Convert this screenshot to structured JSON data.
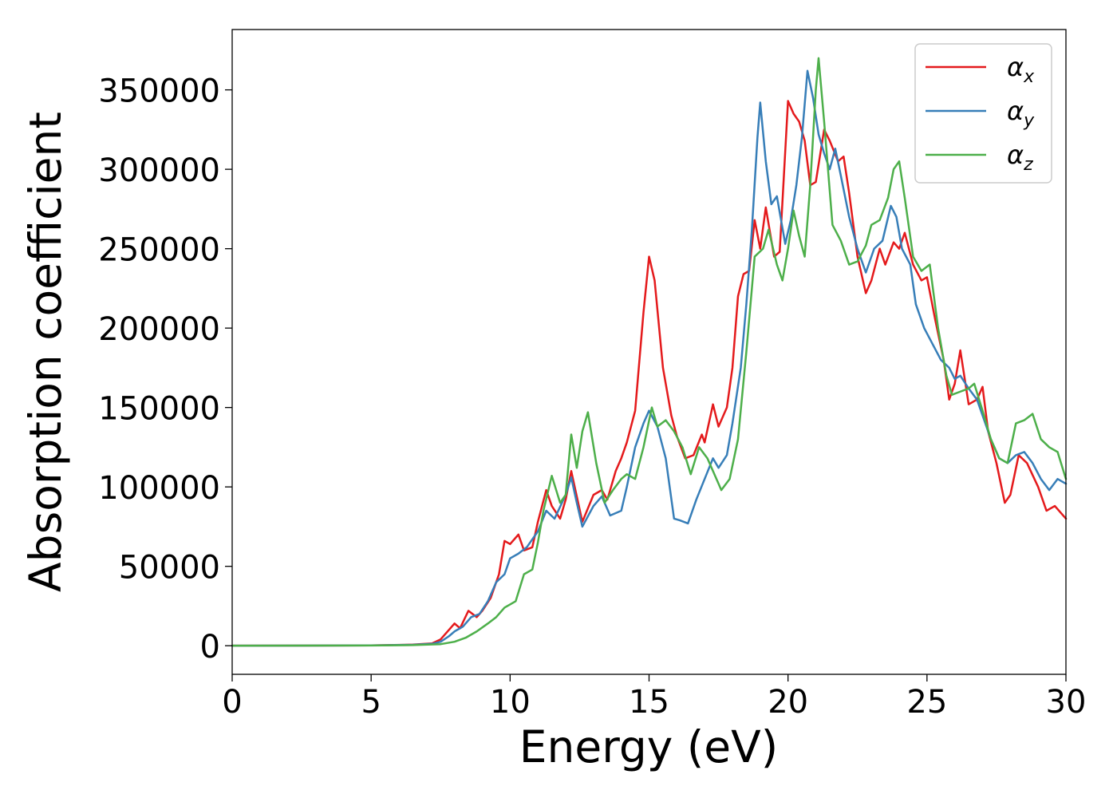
{
  "chart_data": {
    "type": "line",
    "title": "",
    "xlabel": "Energy (eV)",
    "ylabel": "Absorption coefficient",
    "xlim": [
      0,
      30
    ],
    "ylim": [
      -18000,
      388000
    ],
    "xticks": [
      0,
      5,
      10,
      15,
      20,
      25,
      30
    ],
    "yticks": [
      0,
      50000,
      100000,
      150000,
      200000,
      250000,
      300000,
      350000
    ],
    "grid": false,
    "legend_position": "top-right",
    "series": [
      {
        "name": "αx",
        "base": "α",
        "sub": "x",
        "color": "#e41a1c",
        "points": [
          [
            0,
            0
          ],
          [
            5,
            200
          ],
          [
            6.5,
            700
          ],
          [
            7.2,
            1500
          ],
          [
            7.5,
            4000
          ],
          [
            7.8,
            10000
          ],
          [
            8.0,
            14000
          ],
          [
            8.2,
            11000
          ],
          [
            8.5,
            22000
          ],
          [
            8.8,
            18000
          ],
          [
            9.0,
            22000
          ],
          [
            9.3,
            30000
          ],
          [
            9.6,
            45000
          ],
          [
            9.8,
            66000
          ],
          [
            10.0,
            64000
          ],
          [
            10.3,
            70000
          ],
          [
            10.5,
            60000
          ],
          [
            10.8,
            62000
          ],
          [
            11.0,
            78000
          ],
          [
            11.3,
            98000
          ],
          [
            11.5,
            88000
          ],
          [
            11.8,
            80000
          ],
          [
            12.0,
            92000
          ],
          [
            12.2,
            110000
          ],
          [
            12.6,
            78000
          ],
          [
            13.0,
            95000
          ],
          [
            13.3,
            98000
          ],
          [
            13.5,
            92000
          ],
          [
            13.8,
            110000
          ],
          [
            14.0,
            118000
          ],
          [
            14.2,
            128000
          ],
          [
            14.5,
            148000
          ],
          [
            14.8,
            210000
          ],
          [
            15.0,
            245000
          ],
          [
            15.2,
            230000
          ],
          [
            15.5,
            175000
          ],
          [
            15.8,
            145000
          ],
          [
            16.0,
            132000
          ],
          [
            16.3,
            118000
          ],
          [
            16.6,
            120000
          ],
          [
            16.9,
            133000
          ],
          [
            17.0,
            128000
          ],
          [
            17.3,
            152000
          ],
          [
            17.5,
            138000
          ],
          [
            17.8,
            150000
          ],
          [
            18.0,
            175000
          ],
          [
            18.2,
            220000
          ],
          [
            18.4,
            234000
          ],
          [
            18.6,
            236000
          ],
          [
            18.8,
            268000
          ],
          [
            19.0,
            250000
          ],
          [
            19.2,
            276000
          ],
          [
            19.5,
            245000
          ],
          [
            19.7,
            248000
          ],
          [
            20.0,
            343000
          ],
          [
            20.2,
            335000
          ],
          [
            20.4,
            330000
          ],
          [
            20.6,
            318000
          ],
          [
            20.8,
            290000
          ],
          [
            21.0,
            292000
          ],
          [
            21.3,
            325000
          ],
          [
            21.5,
            318000
          ],
          [
            21.8,
            305000
          ],
          [
            22.0,
            308000
          ],
          [
            22.2,
            285000
          ],
          [
            22.5,
            245000
          ],
          [
            22.8,
            222000
          ],
          [
            23.0,
            230000
          ],
          [
            23.3,
            250000
          ],
          [
            23.5,
            240000
          ],
          [
            23.8,
            254000
          ],
          [
            24.0,
            250000
          ],
          [
            24.2,
            260000
          ],
          [
            24.5,
            240000
          ],
          [
            24.8,
            230000
          ],
          [
            25.0,
            232000
          ],
          [
            25.3,
            205000
          ],
          [
            25.6,
            180000
          ],
          [
            25.8,
            155000
          ],
          [
            26.0,
            165000
          ],
          [
            26.2,
            186000
          ],
          [
            26.5,
            152000
          ],
          [
            26.8,
            155000
          ],
          [
            27.0,
            163000
          ],
          [
            27.2,
            135000
          ],
          [
            27.5,
            115000
          ],
          [
            27.8,
            90000
          ],
          [
            28.0,
            95000
          ],
          [
            28.3,
            120000
          ],
          [
            28.6,
            115000
          ],
          [
            29.0,
            100000
          ],
          [
            29.3,
            85000
          ],
          [
            29.6,
            88000
          ],
          [
            30.0,
            80000
          ]
        ]
      },
      {
        "name": "αy",
        "base": "α",
        "sub": "y",
        "color": "#377eb8",
        "points": [
          [
            0,
            0
          ],
          [
            5,
            200
          ],
          [
            6.5,
            600
          ],
          [
            7.2,
            1200
          ],
          [
            7.5,
            2500
          ],
          [
            7.8,
            6000
          ],
          [
            8.0,
            9000
          ],
          [
            8.3,
            12000
          ],
          [
            8.6,
            18000
          ],
          [
            8.9,
            20000
          ],
          [
            9.2,
            28000
          ],
          [
            9.5,
            40000
          ],
          [
            9.8,
            45000
          ],
          [
            10.0,
            55000
          ],
          [
            10.3,
            58000
          ],
          [
            10.6,
            62000
          ],
          [
            11.0,
            72000
          ],
          [
            11.3,
            85000
          ],
          [
            11.6,
            80000
          ],
          [
            12.0,
            95000
          ],
          [
            12.2,
            106000
          ],
          [
            12.4,
            90000
          ],
          [
            12.6,
            75000
          ],
          [
            13.0,
            88000
          ],
          [
            13.3,
            94000
          ],
          [
            13.6,
            82000
          ],
          [
            14.0,
            85000
          ],
          [
            14.2,
            100000
          ],
          [
            14.5,
            125000
          ],
          [
            14.8,
            140000
          ],
          [
            15.0,
            148000
          ],
          [
            15.3,
            138000
          ],
          [
            15.6,
            118000
          ],
          [
            15.9,
            80000
          ],
          [
            16.1,
            79000
          ],
          [
            16.4,
            77000
          ],
          [
            16.7,
            92000
          ],
          [
            17.0,
            105000
          ],
          [
            17.3,
            118000
          ],
          [
            17.5,
            112000
          ],
          [
            17.8,
            120000
          ],
          [
            18.0,
            140000
          ],
          [
            18.3,
            175000
          ],
          [
            18.5,
            215000
          ],
          [
            18.7,
            262000
          ],
          [
            18.9,
            320000
          ],
          [
            19.0,
            342000
          ],
          [
            19.2,
            305000
          ],
          [
            19.4,
            278000
          ],
          [
            19.6,
            283000
          ],
          [
            19.9,
            253000
          ],
          [
            20.1,
            268000
          ],
          [
            20.3,
            290000
          ],
          [
            20.5,
            320000
          ],
          [
            20.7,
            362000
          ],
          [
            20.9,
            345000
          ],
          [
            21.1,
            322000
          ],
          [
            21.3,
            310000
          ],
          [
            21.5,
            300000
          ],
          [
            21.7,
            313000
          ],
          [
            21.9,
            296000
          ],
          [
            22.2,
            270000
          ],
          [
            22.5,
            250000
          ],
          [
            22.8,
            235000
          ],
          [
            23.1,
            250000
          ],
          [
            23.4,
            255000
          ],
          [
            23.7,
            277000
          ],
          [
            23.9,
            270000
          ],
          [
            24.1,
            250000
          ],
          [
            24.4,
            240000
          ],
          [
            24.6,
            215000
          ],
          [
            24.9,
            200000
          ],
          [
            25.2,
            190000
          ],
          [
            25.5,
            180000
          ],
          [
            25.8,
            175000
          ],
          [
            26.0,
            168000
          ],
          [
            26.2,
            170000
          ],
          [
            26.5,
            162000
          ],
          [
            26.8,
            155000
          ],
          [
            27.0,
            145000
          ],
          [
            27.3,
            130000
          ],
          [
            27.6,
            118000
          ],
          [
            27.9,
            115000
          ],
          [
            28.2,
            120000
          ],
          [
            28.5,
            122000
          ],
          [
            28.8,
            115000
          ],
          [
            29.1,
            105000
          ],
          [
            29.4,
            98000
          ],
          [
            29.7,
            105000
          ],
          [
            30.0,
            102000
          ]
        ]
      },
      {
        "name": "αz",
        "base": "α",
        "sub": "z",
        "color": "#4daf4a",
        "points": [
          [
            0,
            0
          ],
          [
            5,
            150
          ],
          [
            6.5,
            400
          ],
          [
            7.5,
            1000
          ],
          [
            8.0,
            2500
          ],
          [
            8.4,
            5000
          ],
          [
            8.8,
            9000
          ],
          [
            9.2,
            14000
          ],
          [
            9.5,
            18000
          ],
          [
            9.8,
            24000
          ],
          [
            10.2,
            28000
          ],
          [
            10.5,
            45000
          ],
          [
            10.8,
            48000
          ],
          [
            11.0,
            65000
          ],
          [
            11.2,
            85000
          ],
          [
            11.5,
            107000
          ],
          [
            11.8,
            90000
          ],
          [
            12.0,
            95000
          ],
          [
            12.2,
            133000
          ],
          [
            12.4,
            112000
          ],
          [
            12.6,
            135000
          ],
          [
            12.8,
            147000
          ],
          [
            13.1,
            115000
          ],
          [
            13.4,
            90000
          ],
          [
            13.7,
            98000
          ],
          [
            14.0,
            105000
          ],
          [
            14.2,
            108000
          ],
          [
            14.5,
            105000
          ],
          [
            14.8,
            125000
          ],
          [
            15.1,
            150000
          ],
          [
            15.3,
            138000
          ],
          [
            15.6,
            142000
          ],
          [
            15.9,
            135000
          ],
          [
            16.2,
            125000
          ],
          [
            16.5,
            108000
          ],
          [
            16.8,
            125000
          ],
          [
            17.1,
            118000
          ],
          [
            17.3,
            110000
          ],
          [
            17.6,
            98000
          ],
          [
            17.9,
            105000
          ],
          [
            18.2,
            130000
          ],
          [
            18.5,
            185000
          ],
          [
            18.8,
            245000
          ],
          [
            19.1,
            250000
          ],
          [
            19.3,
            262000
          ],
          [
            19.6,
            240000
          ],
          [
            19.8,
            230000
          ],
          [
            20.0,
            250000
          ],
          [
            20.2,
            274000
          ],
          [
            20.4,
            258000
          ],
          [
            20.6,
            245000
          ],
          [
            20.8,
            290000
          ],
          [
            21.0,
            350000
          ],
          [
            21.1,
            370000
          ],
          [
            21.3,
            330000
          ],
          [
            21.6,
            265000
          ],
          [
            21.9,
            255000
          ],
          [
            22.2,
            240000
          ],
          [
            22.5,
            242000
          ],
          [
            22.8,
            252000
          ],
          [
            23.0,
            265000
          ],
          [
            23.3,
            268000
          ],
          [
            23.6,
            282000
          ],
          [
            23.8,
            300000
          ],
          [
            24.0,
            305000
          ],
          [
            24.2,
            282000
          ],
          [
            24.5,
            245000
          ],
          [
            24.8,
            236000
          ],
          [
            25.1,
            240000
          ],
          [
            25.4,
            200000
          ],
          [
            25.7,
            170000
          ],
          [
            25.9,
            158000
          ],
          [
            26.2,
            160000
          ],
          [
            26.5,
            162000
          ],
          [
            26.7,
            165000
          ],
          [
            27.0,
            148000
          ],
          [
            27.3,
            130000
          ],
          [
            27.6,
            118000
          ],
          [
            27.9,
            115000
          ],
          [
            28.2,
            140000
          ],
          [
            28.5,
            142000
          ],
          [
            28.8,
            146000
          ],
          [
            29.1,
            130000
          ],
          [
            29.4,
            125000
          ],
          [
            29.7,
            122000
          ],
          [
            30.0,
            105000
          ]
        ]
      }
    ]
  }
}
